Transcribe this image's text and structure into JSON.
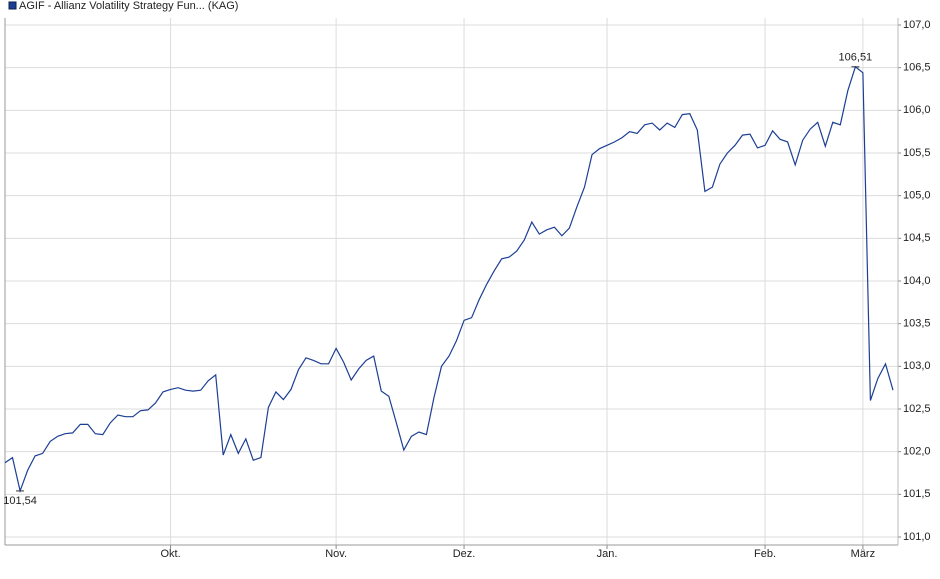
{
  "chart_data": {
    "type": "line",
    "categories": [
      null,
      null,
      null,
      null,
      null,
      null,
      null,
      null,
      null,
      null,
      null,
      null,
      null,
      null,
      null,
      null,
      null,
      null,
      null,
      null,
      null,
      null,
      "Okt.",
      null,
      null,
      null,
      null,
      null,
      null,
      null,
      null,
      null,
      null,
      null,
      null,
      null,
      null,
      null,
      null,
      null,
      null,
      null,
      null,
      null,
      "Nov.",
      null,
      null,
      null,
      null,
      null,
      null,
      null,
      null,
      null,
      null,
      null,
      null,
      null,
      null,
      null,
      null,
      "Dez.",
      null,
      null,
      null,
      null,
      null,
      null,
      null,
      null,
      null,
      null,
      null,
      null,
      null,
      null,
      null,
      null,
      null,
      null,
      "Jan.",
      null,
      null,
      null,
      null,
      null,
      null,
      null,
      null,
      null,
      null,
      null,
      null,
      null,
      null,
      null,
      null,
      null,
      null,
      null,
      null,
      "Feb.",
      null,
      null,
      null,
      null,
      null,
      null,
      null,
      null,
      null,
      null,
      null,
      null,
      "März",
      null,
      null,
      null,
      null
    ],
    "series": [
      {
        "name": "AGIF - Allianz Volatility Strategy Fun... (KAG)",
        "color": "#1c3f94",
        "values": [
          101.87,
          101.93,
          101.54,
          101.78,
          101.95,
          101.98,
          102.12,
          102.18,
          102.21,
          102.22,
          102.32,
          102.32,
          102.21,
          102.2,
          102.34,
          102.43,
          102.41,
          102.41,
          102.48,
          102.49,
          102.57,
          102.7,
          102.73,
          102.75,
          102.72,
          102.71,
          102.72,
          102.83,
          102.9,
          101.96,
          102.2,
          101.98,
          102.15,
          101.9,
          101.93,
          102.52,
          102.7,
          102.61,
          102.73,
          102.96,
          103.1,
          103.07,
          103.03,
          103.03,
          103.21,
          103.05,
          102.84,
          102.97,
          103.07,
          103.12,
          102.71,
          102.65,
          102.34,
          102.02,
          102.18,
          102.23,
          102.2,
          102.63,
          103.0,
          103.12,
          103.3,
          103.54,
          103.57,
          103.78,
          103.96,
          104.12,
          104.26,
          104.28,
          104.35,
          104.48,
          104.69,
          104.55,
          104.6,
          104.63,
          104.53,
          104.62,
          104.87,
          105.1,
          105.48,
          105.55,
          105.59,
          105.63,
          105.68,
          105.75,
          105.73,
          105.83,
          105.85,
          105.77,
          105.85,
          105.8,
          105.95,
          105.96,
          105.77,
          105.05,
          105.1,
          105.37,
          105.5,
          105.59,
          105.71,
          105.72,
          105.56,
          105.59,
          105.76,
          105.66,
          105.63,
          105.36,
          105.65,
          105.78,
          105.86,
          105.58,
          105.86,
          105.83,
          106.23,
          106.51,
          106.44,
          102.6,
          102.86,
          103.03,
          102.72
        ],
        "value_labels": [
          null,
          null,
          "101,54",
          null,
          null,
          null,
          null,
          null,
          null,
          null,
          null,
          null,
          null,
          null,
          null,
          null,
          null,
          null,
          null,
          null,
          null,
          null,
          null,
          null,
          null,
          null,
          null,
          null,
          null,
          null,
          null,
          null,
          null,
          null,
          null,
          null,
          null,
          null,
          null,
          null,
          null,
          null,
          null,
          null,
          null,
          null,
          null,
          null,
          null,
          null,
          null,
          null,
          null,
          null,
          null,
          null,
          null,
          null,
          null,
          null,
          null,
          null,
          null,
          null,
          null,
          null,
          null,
          null,
          null,
          null,
          null,
          null,
          null,
          null,
          null,
          null,
          null,
          null,
          null,
          null,
          null,
          null,
          null,
          null,
          null,
          null,
          null,
          null,
          null,
          null,
          null,
          null,
          null,
          null,
          null,
          null,
          null,
          null,
          null,
          null,
          null,
          null,
          null,
          null,
          null,
          null,
          null,
          null,
          null,
          null,
          null,
          null,
          null,
          "106,51",
          null,
          null,
          null,
          null,
          null
        ]
      }
    ],
    "ylim": [
      101,
      107
    ],
    "yticks": [
      {
        "value": 101,
        "label": "101,0"
      },
      {
        "value": 101.5,
        "label": "101,5"
      },
      {
        "value": 102,
        "label": "102,0"
      },
      {
        "value": 102.5,
        "label": "102,5"
      },
      {
        "value": 103,
        "label": "103,0"
      },
      {
        "value": 103.5,
        "label": "103,5"
      },
      {
        "value": 104,
        "label": "104,0"
      },
      {
        "value": 104.5,
        "label": "104,5"
      },
      {
        "value": 105,
        "label": "105,0"
      },
      {
        "value": 105.5,
        "label": "105,5"
      },
      {
        "value": 106,
        "label": "106,0"
      },
      {
        "value": 106.5,
        "label": "106,5"
      },
      {
        "value": 107,
        "label": "107,0"
      }
    ],
    "grid": true
  }
}
